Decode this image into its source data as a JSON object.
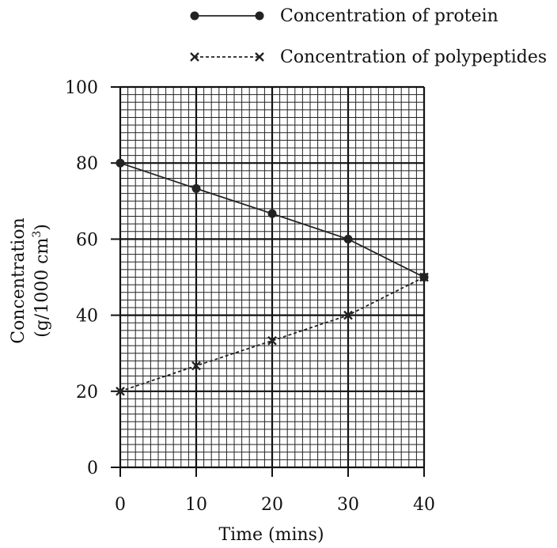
{
  "chart_data": {
    "type": "line",
    "xlabel": "Time (mins)",
    "ylabel_line1": "Concentration",
    "ylabel_line2_prefix": "(g/1000 cm",
    "ylabel_line2_sup": "3",
    "ylabel_line2_suffix": ")",
    "x_ticks": [
      "0",
      "10",
      "20",
      "30",
      "40"
    ],
    "y_ticks": [
      "0",
      "20",
      "40",
      "60",
      "80",
      "100"
    ],
    "xlim": [
      0,
      40
    ],
    "ylim": [
      0,
      100
    ],
    "grid": true,
    "legend_position": "top",
    "x": [
      0,
      10,
      20,
      30,
      40
    ],
    "series": [
      {
        "name": "Concentration of protein",
        "marker": "circle",
        "line_style": "solid",
        "values": [
          80,
          73.3,
          66.7,
          60,
          50
        ]
      },
      {
        "name": "Concentration of polypeptides",
        "marker": "cross",
        "line_style": "dashed",
        "values": [
          20,
          26.7,
          33.3,
          40,
          50
        ]
      }
    ]
  }
}
